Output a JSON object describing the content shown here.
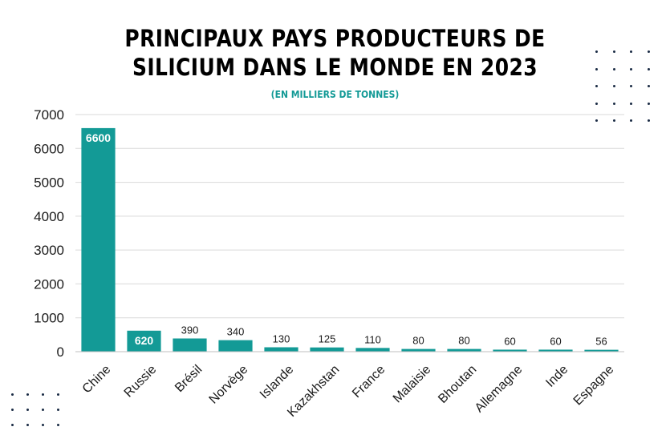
{
  "title_lines": [
    "PRINCIPAUX PAYS PRODUCTEURS DE",
    "SILICIUM DANS LE MONDE EN 2023"
  ],
  "subtitle": "(EN MILLIERS DE TONNES)",
  "colors": {
    "bar": "#139a96",
    "grid": "#d9d9d9",
    "text": "#1a1a1a",
    "dots": "#1a2b44"
  },
  "chart_data": {
    "type": "bar",
    "title": "PRINCIPAUX PAYS PRODUCTEURS DE SILICIUM DANS LE MONDE EN 2023",
    "subtitle": "(EN MILLIERS DE TONNES)",
    "categories": [
      "Chine",
      "Russie",
      "Brésil",
      "Norvège",
      "Islande",
      "Kazakhstan",
      "France",
      "Malaisie",
      "Bhoutan",
      "Allemagne",
      "Inde",
      "Espagne"
    ],
    "values": [
      6600,
      620,
      390,
      340,
      130,
      125,
      110,
      80,
      80,
      60,
      60,
      56
    ],
    "data_labels": [
      "6600",
      "620",
      "390",
      "340",
      "130",
      "125",
      "110",
      "80",
      "80",
      "60",
      "60",
      "56"
    ],
    "yticks": [
      0,
      1000,
      2000,
      3000,
      4000,
      5000,
      6000,
      7000
    ],
    "ylim": [
      0,
      7000
    ],
    "grid": true,
    "legend": "none"
  }
}
